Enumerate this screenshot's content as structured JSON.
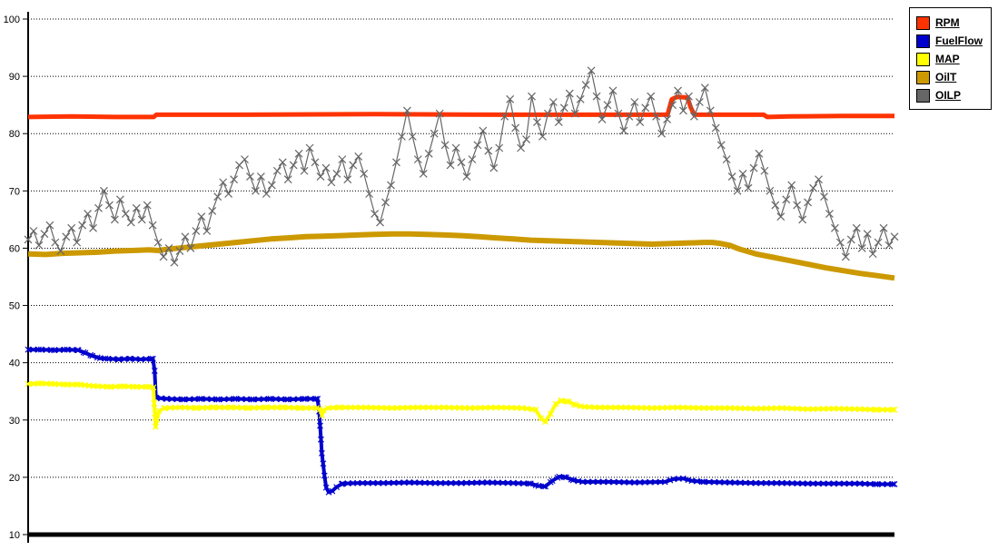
{
  "window": {
    "background": "#ffffff"
  },
  "legend": {
    "position": "top-right",
    "entries": [
      {
        "label": "RPM",
        "color": "#ff3300"
      },
      {
        "label": "FuelFlow",
        "color": "#0000cc"
      },
      {
        "label": "MAP",
        "color": "#ffff00"
      },
      {
        "label": "OilT",
        "color": "#cc9900"
      },
      {
        "label": "OILP",
        "color": "#666666"
      }
    ]
  },
  "chart_data": {
    "type": "line",
    "title": "",
    "xlabel": "",
    "ylabel": "",
    "x_range_percent": [
      0,
      100
    ],
    "x_ticks": [],
    "ylim": [
      10,
      100
    ],
    "y_ticks": [
      10,
      20,
      30,
      40,
      50,
      60,
      70,
      80,
      90,
      100
    ],
    "grid": {
      "horizontal": true,
      "vertical": false,
      "style": "dotted",
      "color": "#000000"
    },
    "baseline": {
      "value": 10,
      "color": "#000000",
      "width": 5
    },
    "legend_position": "top-right",
    "series": [
      {
        "name": "RPM",
        "color": "#ff3300",
        "line_width": 5,
        "marker": "none",
        "points": [
          [
            0,
            82.9
          ],
          [
            5,
            83.0
          ],
          [
            10,
            82.9
          ],
          [
            14.5,
            82.9
          ],
          [
            14.8,
            83.3
          ],
          [
            25,
            83.3
          ],
          [
            40,
            83.4
          ],
          [
            55,
            83.3
          ],
          [
            70,
            83.3
          ],
          [
            73.8,
            83.3
          ],
          [
            74.3,
            86.0
          ],
          [
            74.9,
            86.4
          ],
          [
            76.1,
            86.3
          ],
          [
            76.5,
            84.5
          ],
          [
            76.9,
            83.3
          ],
          [
            80,
            83.3
          ],
          [
            84.9,
            83.3
          ],
          [
            85.3,
            82.9
          ],
          [
            88,
            83.0
          ],
          [
            94,
            83.1
          ],
          [
            100,
            83.1
          ]
        ]
      },
      {
        "name": "FuelFlow",
        "color": "#0000cc",
        "line_width": 4,
        "marker": "x",
        "marker_step": 0.6,
        "points": [
          [
            0,
            42.3
          ],
          [
            1.5,
            42.3
          ],
          [
            3,
            42.2
          ],
          [
            4.5,
            42.3
          ],
          [
            5.8,
            42.2
          ],
          [
            6.6,
            41.7
          ],
          [
            7.4,
            41.2
          ],
          [
            8.3,
            40.8
          ],
          [
            9.2,
            40.7
          ],
          [
            10.5,
            40.6
          ],
          [
            11.8,
            40.7
          ],
          [
            13,
            40.6
          ],
          [
            14.4,
            40.7
          ],
          [
            14.6,
            38.6
          ],
          [
            14.75,
            33.9
          ],
          [
            16,
            33.7
          ],
          [
            18,
            33.6
          ],
          [
            20,
            33.7
          ],
          [
            22,
            33.6
          ],
          [
            24,
            33.7
          ],
          [
            26,
            33.6
          ],
          [
            28,
            33.7
          ],
          [
            30,
            33.6
          ],
          [
            32,
            33.7
          ],
          [
            33.4,
            33.7
          ],
          [
            33.6,
            31.5
          ],
          [
            33.7,
            29.0
          ],
          [
            33.8,
            26.6
          ],
          [
            33.9,
            24.2
          ],
          [
            34.05,
            22.4
          ],
          [
            34.2,
            20.3
          ],
          [
            34.4,
            18.2
          ],
          [
            34.7,
            17.4
          ],
          [
            35.1,
            17.6
          ],
          [
            35.6,
            18.3
          ],
          [
            36.3,
            18.9
          ],
          [
            38,
            19.0
          ],
          [
            41,
            19.0
          ],
          [
            44,
            19.1
          ],
          [
            47,
            19.0
          ],
          [
            50,
            19.0
          ],
          [
            53,
            19.1
          ],
          [
            56,
            19.0
          ],
          [
            58,
            18.9
          ],
          [
            58.9,
            18.5
          ],
          [
            59.7,
            18.4
          ],
          [
            60.5,
            19.4
          ],
          [
            61.3,
            20.1
          ],
          [
            62.1,
            20.0
          ],
          [
            62.9,
            19.5
          ],
          [
            64,
            19.2
          ],
          [
            67,
            19.2
          ],
          [
            70,
            19.1
          ],
          [
            73.5,
            19.2
          ],
          [
            74.5,
            19.7
          ],
          [
            75.6,
            19.8
          ],
          [
            76.6,
            19.4
          ],
          [
            78,
            19.2
          ],
          [
            81,
            19.1
          ],
          [
            84,
            19.0
          ],
          [
            87,
            19.0
          ],
          [
            90,
            18.9
          ],
          [
            93,
            18.9
          ],
          [
            96,
            18.9
          ],
          [
            98,
            18.8
          ],
          [
            100,
            18.8
          ]
        ]
      },
      {
        "name": "MAP",
        "color": "#ffff00",
        "line_width": 4,
        "marker": "x",
        "marker_step": 0.6,
        "points": [
          [
            0,
            36.3
          ],
          [
            1.5,
            36.4
          ],
          [
            3,
            36.3
          ],
          [
            4.5,
            36.2
          ],
          [
            6,
            36.2
          ],
          [
            7,
            36.0
          ],
          [
            8,
            35.9
          ],
          [
            9.5,
            35.8
          ],
          [
            11,
            35.9
          ],
          [
            12.5,
            35.8
          ],
          [
            14,
            35.8
          ],
          [
            14.45,
            35.7
          ],
          [
            14.55,
            32.9
          ],
          [
            14.65,
            30.4
          ],
          [
            14.72,
            28.8
          ],
          [
            14.85,
            30.1
          ],
          [
            15.1,
            31.6
          ],
          [
            15.8,
            32.1
          ],
          [
            17.5,
            32.2
          ],
          [
            19.5,
            32.1
          ],
          [
            21.5,
            32.2
          ],
          [
            23.5,
            32.2
          ],
          [
            25.5,
            32.1
          ],
          [
            27.5,
            32.2
          ],
          [
            29.5,
            32.2
          ],
          [
            31.5,
            32.1
          ],
          [
            33.3,
            32.1
          ],
          [
            33.7,
            31.9
          ],
          [
            33.9,
            30.8
          ],
          [
            34.1,
            31.7
          ],
          [
            34.6,
            32.1
          ],
          [
            36,
            32.2
          ],
          [
            39,
            32.2
          ],
          [
            42,
            32.1
          ],
          [
            45,
            32.2
          ],
          [
            48,
            32.2
          ],
          [
            51,
            32.1
          ],
          [
            54,
            32.2
          ],
          [
            57,
            32.1
          ],
          [
            58.6,
            31.8
          ],
          [
            59.2,
            30.3
          ],
          [
            59.7,
            29.7
          ],
          [
            60.3,
            31.1
          ],
          [
            60.9,
            32.8
          ],
          [
            61.6,
            33.4
          ],
          [
            62.4,
            33.2
          ],
          [
            63.2,
            32.6
          ],
          [
            64.2,
            32.3
          ],
          [
            66,
            32.2
          ],
          [
            69,
            32.2
          ],
          [
            72,
            32.1
          ],
          [
            75,
            32.2
          ],
          [
            78,
            32.1
          ],
          [
            81,
            32.1
          ],
          [
            84,
            32.0
          ],
          [
            87,
            32.1
          ],
          [
            90,
            31.9
          ],
          [
            93,
            32.0
          ],
          [
            96,
            31.9
          ],
          [
            98,
            31.8
          ],
          [
            100,
            31.8
          ]
        ]
      },
      {
        "name": "OilT",
        "color": "#cc9900",
        "line_width": 6,
        "marker": "none",
        "points": [
          [
            0,
            59.0
          ],
          [
            2,
            58.9
          ],
          [
            4,
            59.1
          ],
          [
            6,
            59.2
          ],
          [
            8,
            59.3
          ],
          [
            10,
            59.5
          ],
          [
            12,
            59.6
          ],
          [
            14,
            59.7
          ],
          [
            15,
            59.6
          ],
          [
            16,
            59.8
          ],
          [
            18,
            60.1
          ],
          [
            20,
            60.4
          ],
          [
            22,
            60.7
          ],
          [
            24,
            61.0
          ],
          [
            26,
            61.3
          ],
          [
            28,
            61.6
          ],
          [
            30,
            61.8
          ],
          [
            32,
            62.0
          ],
          [
            34,
            62.1
          ],
          [
            36,
            62.2
          ],
          [
            38,
            62.3
          ],
          [
            40,
            62.4
          ],
          [
            42,
            62.5
          ],
          [
            44,
            62.5
          ],
          [
            46,
            62.4
          ],
          [
            48,
            62.3
          ],
          [
            50,
            62.2
          ],
          [
            52,
            62.0
          ],
          [
            54,
            61.8
          ],
          [
            56,
            61.6
          ],
          [
            58,
            61.4
          ],
          [
            60,
            61.3
          ],
          [
            62,
            61.2
          ],
          [
            64,
            61.1
          ],
          [
            66,
            61.0
          ],
          [
            68,
            60.9
          ],
          [
            70,
            60.8
          ],
          [
            72,
            60.7
          ],
          [
            74,
            60.8
          ],
          [
            76,
            60.9
          ],
          [
            78,
            61.0
          ],
          [
            79,
            61.0
          ],
          [
            80,
            60.8
          ],
          [
            81,
            60.5
          ],
          [
            82,
            59.9
          ],
          [
            84,
            59.0
          ],
          [
            86,
            58.4
          ],
          [
            88,
            57.8
          ],
          [
            90,
            57.2
          ],
          [
            92,
            56.6
          ],
          [
            94,
            56.1
          ],
          [
            96,
            55.6
          ],
          [
            98,
            55.2
          ],
          [
            100,
            54.8
          ]
        ]
      },
      {
        "name": "OILP",
        "color": "#666666",
        "line_width": 1.2,
        "marker": "x",
        "x_start": 0,
        "x_step": 0.625,
        "values": [
          61.5,
          63.0,
          60.5,
          62.5,
          64.0,
          61.0,
          59.5,
          62.0,
          63.5,
          61.0,
          64.0,
          66.0,
          63.5,
          67.0,
          70.0,
          67.5,
          65.0,
          68.5,
          66.0,
          64.5,
          67.0,
          65.0,
          67.5,
          64.0,
          61.0,
          58.5,
          60.0,
          57.5,
          59.5,
          62.0,
          60.0,
          63.0,
          65.5,
          63.0,
          66.5,
          69.0,
          71.5,
          69.5,
          72.0,
          74.5,
          75.5,
          72.5,
          70.0,
          72.5,
          69.5,
          71.0,
          73.5,
          75.0,
          72.0,
          74.5,
          76.5,
          73.5,
          77.5,
          75.0,
          72.5,
          74.0,
          71.5,
          73.0,
          75.5,
          72.0,
          74.5,
          76.0,
          73.0,
          69.5,
          66.0,
          64.5,
          68.0,
          71.0,
          75.0,
          79.5,
          84.0,
          79.5,
          75.5,
          73.0,
          76.5,
          80.0,
          83.5,
          78.0,
          74.5,
          77.5,
          75.0,
          72.5,
          75.5,
          78.0,
          80.5,
          77.0,
          74.0,
          77.5,
          83.0,
          86.0,
          81.0,
          77.5,
          79.0,
          86.5,
          82.0,
          79.5,
          83.5,
          85.5,
          82.0,
          84.5,
          87.0,
          83.5,
          86.0,
          88.5,
          91.0,
          86.5,
          82.5,
          85.0,
          87.5,
          83.5,
          80.5,
          83.0,
          85.5,
          82.0,
          84.5,
          86.5,
          83.0,
          80.0,
          82.5,
          85.0,
          87.5,
          84.0,
          86.5,
          83.0,
          85.5,
          88.0,
          84.0,
          81.0,
          78.0,
          75.5,
          72.5,
          70.0,
          73.0,
          70.5,
          74.0,
          76.5,
          73.5,
          70.0,
          67.5,
          65.5,
          68.5,
          71.0,
          67.5,
          65.0,
          68.0,
          70.5,
          72.0,
          69.0,
          66.0,
          63.5,
          61.0,
          58.5,
          61.5,
          63.5,
          60.0,
          62.5,
          59.0,
          61.0,
          63.5,
          60.5,
          62.0
        ]
      }
    ]
  }
}
